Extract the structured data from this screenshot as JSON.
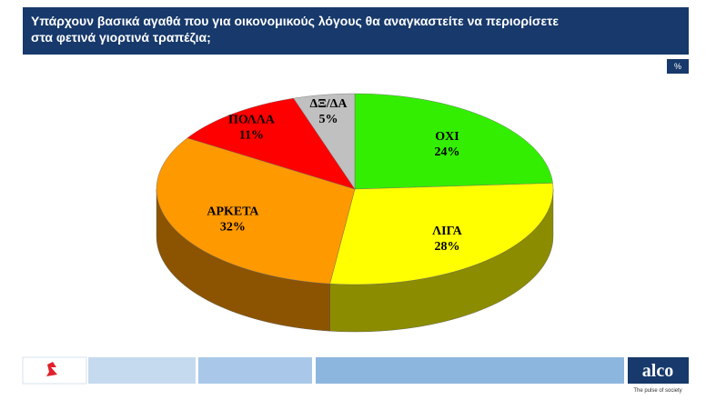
{
  "chart_data": {
    "type": "pie3d",
    "title": [
      "Υπάρχουν βασικά αγαθά που για οικονομικούς λόγους  θα αναγκαστείτε να περιορίσετε",
      "στα φετινά γιορτινά τραπέζια;"
    ],
    "unit_badge": "%",
    "categories": [
      "ΟΧΙ",
      "ΛΙΓΑ",
      "ΑΡΚΕΤΑ",
      "ΠΟΛΛΑ",
      "ΔΞ/ΔΑ"
    ],
    "values": [
      24,
      28,
      32,
      11,
      5
    ],
    "value_labels": [
      "24%",
      "28%",
      "32%",
      "11%",
      "5%"
    ],
    "colors": [
      "#33ee00",
      "#ffff00",
      "#ff9900",
      "#ff0000",
      "#c0c0c0"
    ]
  },
  "footer": {
    "brand": "alco",
    "tagline": "The pulse of society"
  }
}
